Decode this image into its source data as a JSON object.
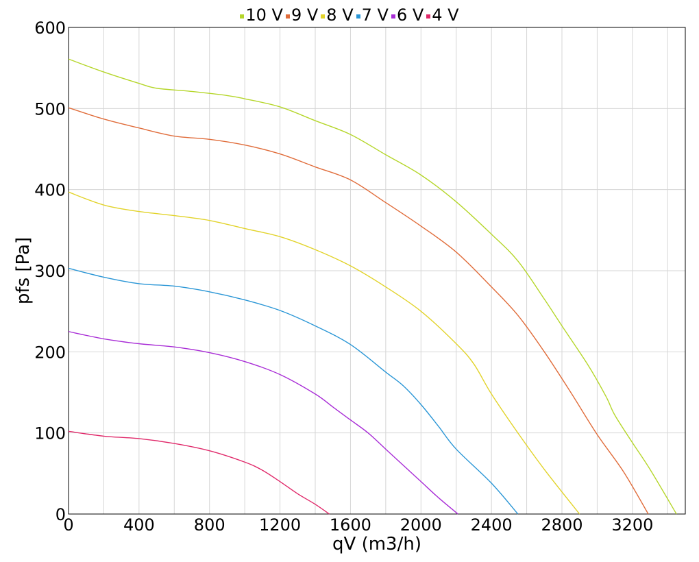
{
  "chart_data": {
    "type": "line",
    "xlabel": "qV (m3/h)",
    "ylabel": "pfs [Pa]",
    "xlim": [
      0,
      3500
    ],
    "ylim": [
      0,
      600
    ],
    "xticks": [
      0,
      400,
      800,
      1200,
      1600,
      2000,
      2400,
      2800,
      3200
    ],
    "yticks": [
      0,
      100,
      200,
      300,
      400,
      500,
      600
    ],
    "grid": true,
    "legend_position": "top-center",
    "series": [
      {
        "name": "10 V",
        "color": "#b5d62a",
        "points": [
          [
            0,
            561
          ],
          [
            200,
            545
          ],
          [
            400,
            531
          ],
          [
            500,
            525
          ],
          [
            700,
            521
          ],
          [
            900,
            516
          ],
          [
            1000,
            512
          ],
          [
            1200,
            502
          ],
          [
            1400,
            485
          ],
          [
            1600,
            468
          ],
          [
            1800,
            443
          ],
          [
            2000,
            418
          ],
          [
            2200,
            385
          ],
          [
            2400,
            345
          ],
          [
            2550,
            312
          ],
          [
            2700,
            265
          ],
          [
            2800,
            232
          ],
          [
            2950,
            183
          ],
          [
            3050,
            145
          ],
          [
            3100,
            122
          ],
          [
            3200,
            88
          ],
          [
            3300,
            55
          ],
          [
            3450,
            0
          ]
        ]
      },
      {
        "name": "9 V",
        "color": "#e06c3a",
        "points": [
          [
            0,
            501
          ],
          [
            200,
            487
          ],
          [
            400,
            476
          ],
          [
            600,
            466
          ],
          [
            800,
            462
          ],
          [
            1000,
            455
          ],
          [
            1200,
            444
          ],
          [
            1400,
            428
          ],
          [
            1600,
            412
          ],
          [
            1800,
            384
          ],
          [
            2000,
            355
          ],
          [
            2200,
            323
          ],
          [
            2400,
            280
          ],
          [
            2550,
            245
          ],
          [
            2700,
            200
          ],
          [
            2850,
            150
          ],
          [
            3000,
            98
          ],
          [
            3150,
            52
          ],
          [
            3290,
            0
          ]
        ]
      },
      {
        "name": "8 V",
        "color": "#e2d32a",
        "points": [
          [
            0,
            397
          ],
          [
            200,
            381
          ],
          [
            400,
            373
          ],
          [
            600,
            368
          ],
          [
            800,
            362
          ],
          [
            1000,
            352
          ],
          [
            1200,
            342
          ],
          [
            1400,
            326
          ],
          [
            1600,
            306
          ],
          [
            1800,
            280
          ],
          [
            2000,
            250
          ],
          [
            2200,
            210
          ],
          [
            2300,
            185
          ],
          [
            2400,
            148
          ],
          [
            2550,
            100
          ],
          [
            2700,
            55
          ],
          [
            2900,
            0
          ]
        ]
      },
      {
        "name": "7 V",
        "color": "#2a96d6",
        "points": [
          [
            0,
            303
          ],
          [
            200,
            292
          ],
          [
            400,
            284
          ],
          [
            600,
            281
          ],
          [
            800,
            274
          ],
          [
            1000,
            264
          ],
          [
            1200,
            251
          ],
          [
            1400,
            232
          ],
          [
            1600,
            209
          ],
          [
            1800,
            175
          ],
          [
            1900,
            158
          ],
          [
            2000,
            135
          ],
          [
            2100,
            108
          ],
          [
            2200,
            80
          ],
          [
            2400,
            38
          ],
          [
            2550,
            0
          ]
        ]
      },
      {
        "name": "6 V",
        "color": "#a82cd6",
        "points": [
          [
            0,
            225
          ],
          [
            200,
            216
          ],
          [
            400,
            210
          ],
          [
            600,
            206
          ],
          [
            800,
            199
          ],
          [
            1000,
            188
          ],
          [
            1200,
            172
          ],
          [
            1400,
            148
          ],
          [
            1500,
            132
          ],
          [
            1600,
            116
          ],
          [
            1700,
            100
          ],
          [
            1800,
            80
          ],
          [
            1900,
            60
          ],
          [
            2000,
            40
          ],
          [
            2100,
            20
          ],
          [
            2210,
            0
          ]
        ]
      },
      {
        "name": "4 V",
        "color": "#e0296a",
        "points": [
          [
            0,
            102
          ],
          [
            200,
            96
          ],
          [
            400,
            93
          ],
          [
            600,
            87
          ],
          [
            800,
            78
          ],
          [
            1000,
            64
          ],
          [
            1100,
            54
          ],
          [
            1200,
            40
          ],
          [
            1300,
            25
          ],
          [
            1400,
            12
          ],
          [
            1480,
            0
          ]
        ]
      }
    ]
  }
}
